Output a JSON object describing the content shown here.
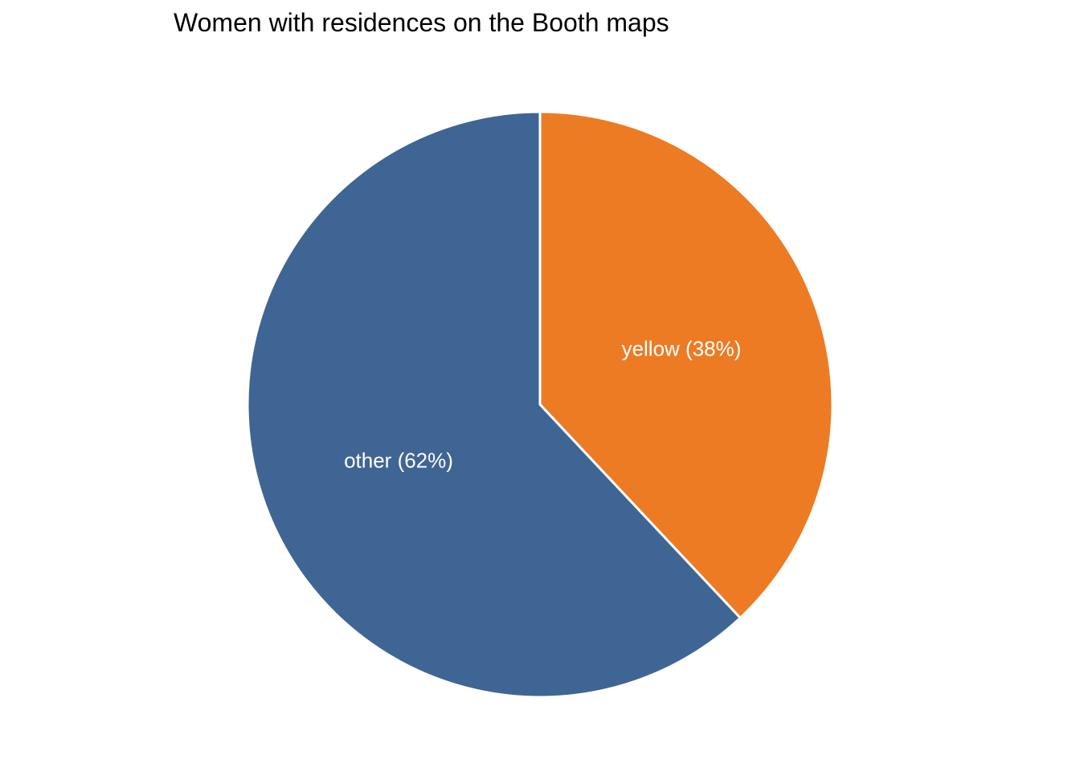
{
  "chart_data": {
    "type": "pie",
    "title": "Women with residences on the Booth maps",
    "slices": [
      {
        "label": "yellow (38%)",
        "category": "yellow",
        "value": 38,
        "color": "#EC7B24"
      },
      {
        "label": "other (62%)",
        "category": "other",
        "value": 62,
        "color": "#3F6594"
      }
    ],
    "start_angle": "12 o'clock",
    "direction": "clockwise",
    "slice_border_color": "#FFFFFF",
    "legend": "none"
  }
}
